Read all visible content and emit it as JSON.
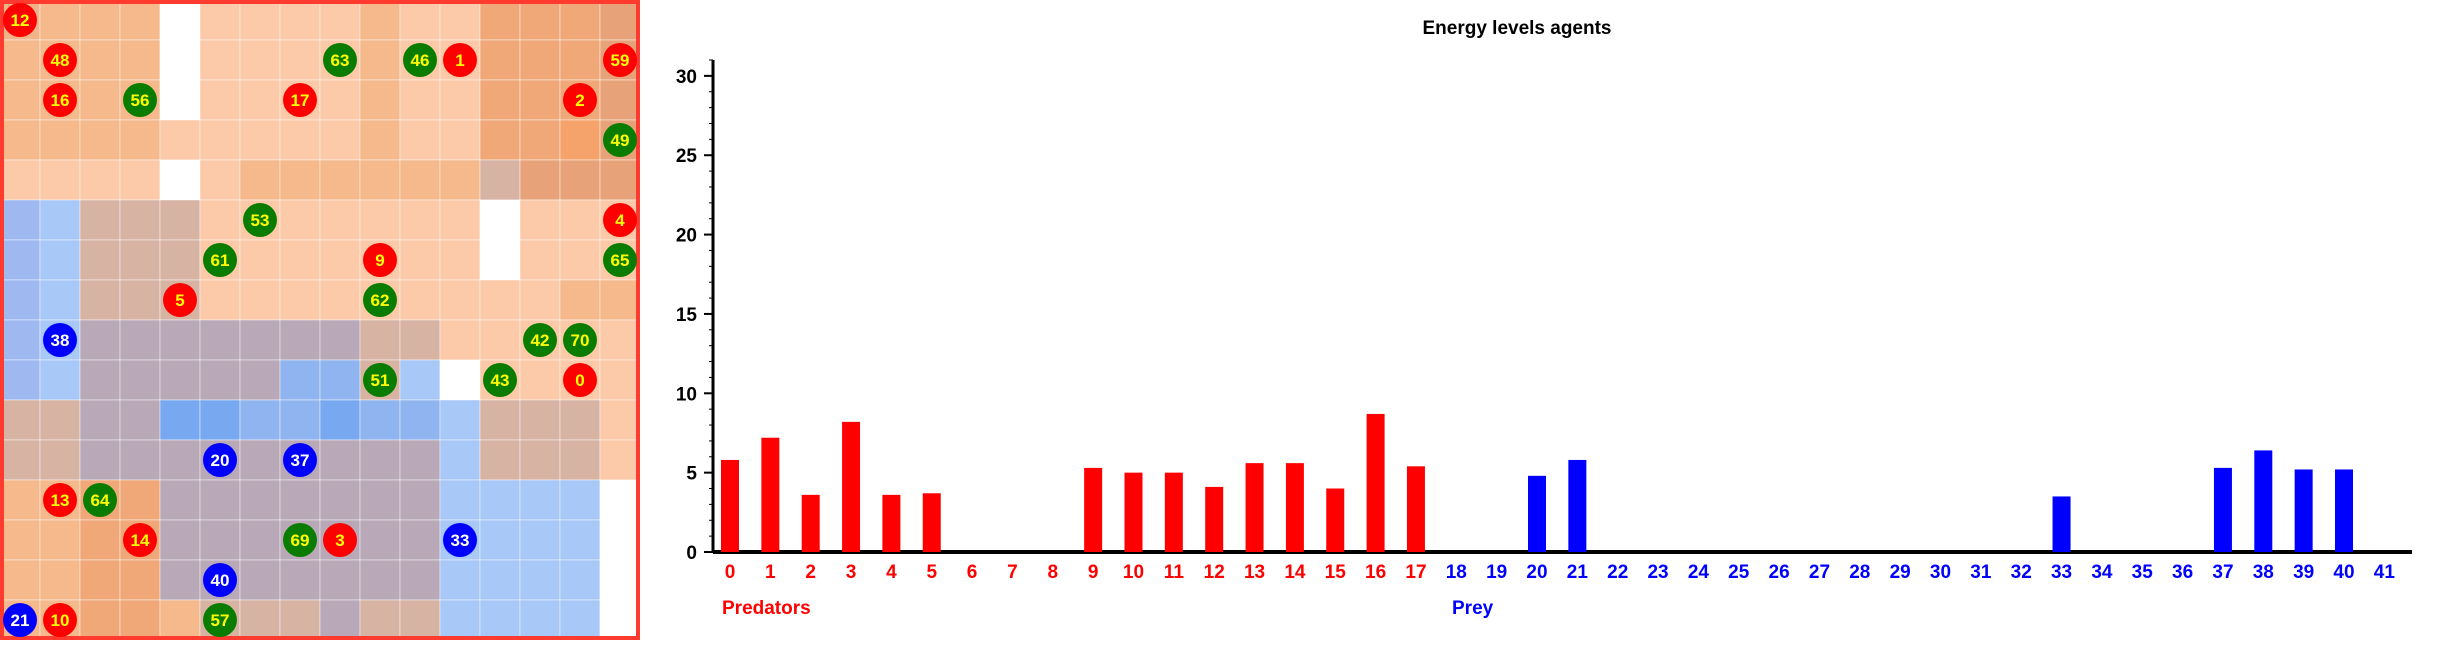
{
  "colors": {
    "predator": "#ff0000",
    "prey": "#0000ff",
    "plant": "#0a7d00",
    "agent_label": "#ffff00",
    "prey_label": "#ffffff",
    "grid_border": "#ff3b30",
    "axis": "#000000"
  },
  "grid": {
    "rows": 16,
    "cols": 16,
    "cell_colors": [
      [
        "#f2b487",
        "#f5b98b",
        "#f5b98b",
        "#f5b98b",
        "#ffffff",
        "#fccaa8",
        "#fccaa8",
        "#fccaa8",
        "#fccaa8",
        "#f5b98b",
        "#fccaa8",
        "#fccaa8",
        "#f0a878",
        "#f0a878",
        "#f0a878",
        "#e8a27a"
      ],
      [
        "#f5b98b",
        "#f5b98b",
        "#f5b98b",
        "#f5b98b",
        "#ffffff",
        "#fccaa8",
        "#fccaa8",
        "#fccaa8",
        "#fccaa8",
        "#f5b98b",
        "#fccaa8",
        "#fccaa8",
        "#f0a878",
        "#f0a878",
        "#f0a878",
        "#e8a27a"
      ],
      [
        "#f5b98b",
        "#f5b98b",
        "#f5b98b",
        "#f5b98b",
        "#ffffff",
        "#fccaa8",
        "#fccaa8",
        "#fccaa8",
        "#fccaa8",
        "#f5b98b",
        "#fccaa8",
        "#fccaa8",
        "#f0a878",
        "#f0a878",
        "#f0a878",
        "#e8a27a"
      ],
      [
        "#f5b98b",
        "#f5b98b",
        "#f5b98b",
        "#f5b98b",
        "#fccaa8",
        "#fccaa8",
        "#fccaa8",
        "#fccaa8",
        "#fccaa8",
        "#f5b98b",
        "#fccaa8",
        "#fccaa8",
        "#f0a878",
        "#f0a878",
        "#f5a36a",
        "#e8a27a"
      ],
      [
        "#fccaa8",
        "#fccaa8",
        "#fccaa8",
        "#fccaa8",
        "#ffffff",
        "#fccaa8",
        "#f5b98b",
        "#f5b98b",
        "#f5b98b",
        "#f5b98b",
        "#f5b98b",
        "#f5b98b",
        "#d7b3a4",
        "#e8a27a",
        "#e8a27a",
        "#e8a27a"
      ],
      [
        "#9fb8f0",
        "#a8c8f8",
        "#d7b3a4",
        "#d7b3a4",
        "#d7b3a4",
        "#fccaa8",
        "#fccaa8",
        "#fccaa8",
        "#fccaa8",
        "#fccaa8",
        "#fccaa8",
        "#fccaa8",
        "#ffffff",
        "#fccaa8",
        "#fccaa8",
        "#fccaa8"
      ],
      [
        "#9fb8f0",
        "#a8c8f8",
        "#d7b3a4",
        "#d7b3a4",
        "#d7b3a4",
        "#fccaa8",
        "#fccaa8",
        "#fccaa8",
        "#fccaa8",
        "#fccaa8",
        "#fccaa8",
        "#fccaa8",
        "#ffffff",
        "#fccaa8",
        "#fccaa8",
        "#fccaa8"
      ],
      [
        "#9fb8f0",
        "#a8c8f8",
        "#d7b3a4",
        "#d7b3a4",
        "#d7b3a4",
        "#fccaa8",
        "#fccaa8",
        "#fccaa8",
        "#fccaa8",
        "#fccaa8",
        "#fccaa8",
        "#fccaa8",
        "#fccaa8",
        "#fccaa8",
        "#f5b98b",
        "#f5b98b"
      ],
      [
        "#9fb8f0",
        "#a8c8f8",
        "#b8a8b8",
        "#b8a8b8",
        "#b8a8b8",
        "#b8a8b8",
        "#b8a8b8",
        "#b8a8b8",
        "#b8a8b8",
        "#d7b3a4",
        "#d7b3a4",
        "#fccaa8",
        "#fccaa8",
        "#fccaa8",
        "#fccaa8",
        "#fccaa8"
      ],
      [
        "#9fb8f0",
        "#a8c8f8",
        "#b8a8b8",
        "#b8a8b8",
        "#b8a8b8",
        "#b8a8b8",
        "#b8a8b8",
        "#8fb4f0",
        "#8fb4f0",
        "#d7b3a4",
        "#a8c8f8",
        "#ffffff",
        "#fccaa8",
        "#fccaa8",
        "#fccaa8",
        "#fccaa8"
      ],
      [
        "#d7b3a4",
        "#d7b3a4",
        "#b8a8b8",
        "#b8a8b8",
        "#78a8f0",
        "#78a8f0",
        "#8fb4f0",
        "#8fb4f0",
        "#78a8f0",
        "#8fb4f0",
        "#8fb4f0",
        "#a8c8f8",
        "#d7b3a4",
        "#d7b3a4",
        "#d7b3a4",
        "#fccaa8"
      ],
      [
        "#d7b3a4",
        "#d7b3a4",
        "#b8a8b8",
        "#b8a8b8",
        "#b8a8b8",
        "#b8a8b8",
        "#b8a8b8",
        "#b8a8b8",
        "#b8a8b8",
        "#b8a8b8",
        "#b8a8b8",
        "#a8c8f8",
        "#d7b3a4",
        "#d7b3a4",
        "#d7b3a4",
        "#fccaa8"
      ],
      [
        "#f5b98b",
        "#f5b98b",
        "#f0a878",
        "#f0a878",
        "#b8a8b8",
        "#b8a8b8",
        "#b8a8b8",
        "#b8a8b8",
        "#b8a8b8",
        "#b8a8b8",
        "#b8a8b8",
        "#a8c8f8",
        "#a8c8f8",
        "#a8c8f8",
        "#a8c8f8",
        "#ffffff"
      ],
      [
        "#f5b98b",
        "#f5b98b",
        "#f0a878",
        "#f0a878",
        "#b8a8b8",
        "#b8a8b8",
        "#b8a8b8",
        "#b8a8b8",
        "#b8a8b8",
        "#b8a8b8",
        "#b8a8b8",
        "#a8c8f8",
        "#a8c8f8",
        "#a8c8f8",
        "#a8c8f8",
        "#ffffff"
      ],
      [
        "#f5b98b",
        "#f5b98b",
        "#f0a878",
        "#f0a878",
        "#b8a8b8",
        "#b8a8b8",
        "#b8a8b8",
        "#b8a8b8",
        "#b8a8b8",
        "#b8a8b8",
        "#b8a8b8",
        "#a8c8f8",
        "#a8c8f8",
        "#a8c8f8",
        "#a8c8f8",
        "#ffffff"
      ],
      [
        "#f5b98b",
        "#f5b98b",
        "#f0a878",
        "#f0a878",
        "#f5b98b",
        "#d7b3a4",
        "#d7b3a4",
        "#d7b3a4",
        "#b8a8b8",
        "#d7b3a4",
        "#d7b3a4",
        "#a8c8f8",
        "#a8c8f8",
        "#a8c8f8",
        "#a8c8f8",
        "#ffffff"
      ]
    ],
    "agents": [
      {
        "label": "12",
        "kind": "predator",
        "row": 0,
        "col": 0
      },
      {
        "label": "48",
        "kind": "predator",
        "row": 1,
        "col": 1
      },
      {
        "label": "63",
        "kind": "plant",
        "row": 1,
        "col": 8
      },
      {
        "label": "46",
        "kind": "plant",
        "row": 1,
        "col": 10
      },
      {
        "label": "1",
        "kind": "predator",
        "row": 1,
        "col": 11
      },
      {
        "label": "59",
        "kind": "predator",
        "row": 1,
        "col": 15
      },
      {
        "label": "16",
        "kind": "predator",
        "row": 2,
        "col": 1
      },
      {
        "label": "56",
        "kind": "plant",
        "row": 2,
        "col": 3
      },
      {
        "label": "17",
        "kind": "predator",
        "row": 2,
        "col": 7
      },
      {
        "label": "2",
        "kind": "predator",
        "row": 2,
        "col": 14
      },
      {
        "label": "49",
        "kind": "plant",
        "row": 3,
        "col": 15
      },
      {
        "label": "53",
        "kind": "plant",
        "row": 5,
        "col": 6
      },
      {
        "label": "4",
        "kind": "predator",
        "row": 5,
        "col": 15
      },
      {
        "label": "61",
        "kind": "plant",
        "row": 6,
        "col": 5
      },
      {
        "label": "9",
        "kind": "predator",
        "row": 6,
        "col": 9
      },
      {
        "label": "65",
        "kind": "plant",
        "row": 6,
        "col": 15
      },
      {
        "label": "5",
        "kind": "predator",
        "row": 7,
        "col": 4
      },
      {
        "label": "62",
        "kind": "plant",
        "row": 7,
        "col": 9
      },
      {
        "label": "38",
        "kind": "prey",
        "row": 8,
        "col": 1
      },
      {
        "label": "42",
        "kind": "plant",
        "row": 8,
        "col": 13
      },
      {
        "label": "70",
        "kind": "plant",
        "row": 8,
        "col": 14
      },
      {
        "label": "51",
        "kind": "plant",
        "row": 9,
        "col": 9
      },
      {
        "label": "43",
        "kind": "plant",
        "row": 9,
        "col": 12
      },
      {
        "label": "0",
        "kind": "predator",
        "row": 9,
        "col": 14
      },
      {
        "label": "20",
        "kind": "prey",
        "row": 11,
        "col": 5
      },
      {
        "label": "37",
        "kind": "prey",
        "row": 11,
        "col": 7
      },
      {
        "label": "13",
        "kind": "predator",
        "row": 12,
        "col": 1
      },
      {
        "label": "64",
        "kind": "plant",
        "row": 12,
        "col": 2
      },
      {
        "label": "14",
        "kind": "predator",
        "row": 13,
        "col": 3
      },
      {
        "label": "69",
        "kind": "plant",
        "row": 13,
        "col": 7
      },
      {
        "label": "3",
        "kind": "predator",
        "row": 13,
        "col": 8
      },
      {
        "label": "33",
        "kind": "prey",
        "row": 13,
        "col": 11
      },
      {
        "label": "40",
        "kind": "prey",
        "row": 14,
        "col": 5
      },
      {
        "label": "21",
        "kind": "prey",
        "row": 15,
        "col": 0
      },
      {
        "label": "10",
        "kind": "predator",
        "row": 15,
        "col": 1
      },
      {
        "label": "57",
        "kind": "plant",
        "row": 15,
        "col": 5
      }
    ]
  },
  "chart_data": {
    "type": "bar",
    "title": "Energy levels agents",
    "ylim": [
      0,
      31
    ],
    "yticks": [
      "0",
      "5",
      "10",
      "15",
      "20",
      "25",
      "30"
    ],
    "categories": [
      "0",
      "1",
      "2",
      "3",
      "4",
      "5",
      "6",
      "7",
      "8",
      "9",
      "10",
      "11",
      "12",
      "13",
      "14",
      "15",
      "16",
      "17",
      "18",
      "19",
      "20",
      "21",
      "22",
      "23",
      "24",
      "25",
      "26",
      "27",
      "28",
      "29",
      "30",
      "31",
      "32",
      "33",
      "34",
      "35",
      "36",
      "37",
      "38",
      "39",
      "40",
      "41"
    ],
    "values": [
      5.8,
      7.2,
      3.6,
      8.2,
      3.6,
      3.7,
      0,
      0,
      0,
      5.3,
      5.0,
      5.0,
      4.1,
      5.6,
      5.6,
      4.0,
      8.7,
      5.4,
      0,
      0,
      4.8,
      5.8,
      0,
      0,
      0,
      0,
      0,
      0,
      0,
      0,
      0,
      0,
      0,
      3.5,
      0,
      0,
      0,
      5.3,
      6.4,
      5.2,
      5.2,
      0
    ],
    "groups": [
      {
        "name": "Predators",
        "start": 0,
        "end": 17,
        "color": "#ff0000"
      },
      {
        "name": "Prey",
        "start": 18,
        "end": 41,
        "color": "#0000ff"
      }
    ],
    "grid": false
  }
}
